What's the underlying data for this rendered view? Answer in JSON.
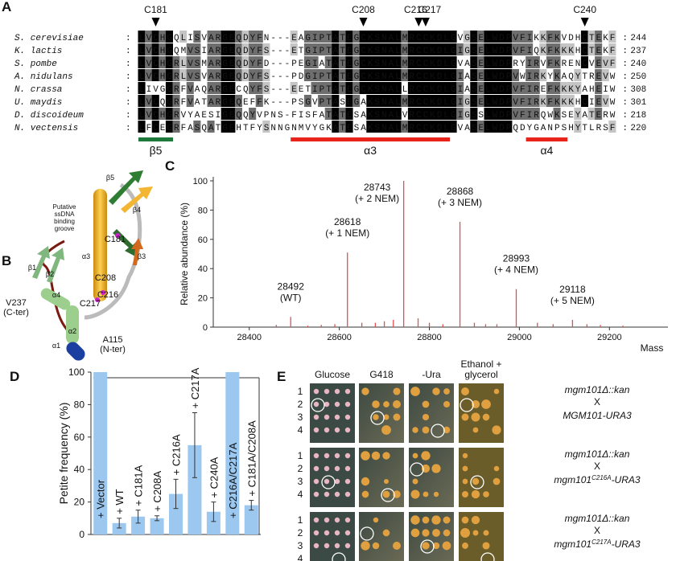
{
  "panel_letters": [
    "A",
    "B",
    "C",
    "D",
    "E"
  ],
  "panel_a": {
    "separator": ":",
    "markers": [
      "C181",
      "C208",
      "C216",
      "C217",
      "C240"
    ],
    "rows": [
      {
        "species": "S. cerevisiae",
        "sequence": "LVCHGQLISVARGEQDYFN---EAGIPTATEGCKSNALMRCCKDLGVGSELWDPVFIKKFKVDHCTEKF",
        "end": 244
      },
      {
        "species": "K. lactis",
        "sequence": "LVCHGQMVSIARGEQDYFS---ETGIPTATEGCKSNALMRCCKDLGIGSELWDPVFIQKFKKKHCTEKF",
        "end": 237
      },
      {
        "species": "S. pombe",
        "sequence": "LVCHGRLVSMARGEQDYFD---PEGIATATEGCKSNALMRCCKDLGVASELWDPRYIRVFKRENCVEVF",
        "end": 240
      },
      {
        "species": "A. nidulans",
        "sequence": "LVCHGRLVSVARGEQDYFS---PDGIPTATEGCKSNALMRCCKDLGIASELWDPVWIRKYKAQYTREVW",
        "end": 250
      },
      {
        "species": "N. crassa",
        "sequence": "LIVGGRFVAQARGECQYFS---EETIPTATEGCKSNALLRCCKDLGIASELWDPVFIREFKKKYAHEIW",
        "end": 308
      },
      {
        "species": "U. maydis",
        "sequence": "LVCQGRFVATARGEQEFFK---PSGVPTASEGAKSNALMRCCKDLGIGSELWDPVFIRKFKKKHCIEVW",
        "end": 301
      },
      {
        "species": "D. discoideum",
        "sequence": "LVCHGRVYAESIGEQQYVPNS-FISFATATESAKSNALVRCCKDLGIGSSLWDPVFIRQWKSEYATERW",
        "end": 218
      },
      {
        "species": "N. vectensis",
        "sequence": "LFCEGRFASQATGEHTFYSNNGNMVYGKATESAKSNALMRCCKDLGVASELWDPQDYGANPSHYTLRSF",
        "end": 220
      }
    ],
    "structure": [
      "β5",
      "α3",
      "α4"
    ]
  },
  "panel_b": {
    "labels": [
      [
        "Putative",
        "ssDNA",
        "binding",
        "groove"
      ],
      [
        "β5"
      ],
      [
        "β4"
      ],
      [
        "β3"
      ],
      [
        "C181"
      ],
      [
        "α3"
      ],
      [
        "C208"
      ],
      [
        "β1"
      ],
      [
        "β2"
      ],
      [
        "α4"
      ],
      [
        "C217"
      ],
      [
        "C216"
      ],
      [
        "α2"
      ],
      [
        "V237",
        "(C-ter)"
      ],
      [
        "α1"
      ],
      [
        "A115",
        "(N-ter)"
      ]
    ]
  },
  "chart_data": [
    {
      "type": "spectrum",
      "x_label": "Mass",
      "y_label": "Relative abundance (%)",
      "color": "#e05050",
      "x": [
        28460,
        28492,
        28530,
        28560,
        28590,
        28618,
        28650,
        28680,
        28700,
        28720,
        28743,
        28775,
        28800,
        28830,
        28868,
        28900,
        28925,
        28950,
        28993,
        29040,
        29075,
        29118,
        29150,
        29180,
        29230
      ],
      "values": [
        1.5,
        7,
        1,
        1.5,
        2,
        51,
        3,
        3,
        4,
        5,
        100,
        6,
        3,
        2,
        72,
        3,
        2,
        2,
        26,
        3,
        2,
        5,
        2,
        1.5,
        1
      ],
      "peak_labels": [
        null,
        [
          "28492",
          "(WT)"
        ],
        null,
        null,
        null,
        [
          "28618",
          "(+ 1 NEM)"
        ],
        null,
        null,
        null,
        null,
        [
          "28743",
          "(+ 2 NEM)"
        ],
        null,
        null,
        null,
        [
          "28868",
          "(+ 3 NEM)"
        ],
        null,
        null,
        null,
        [
          "28993",
          "(+ 4 NEM)"
        ],
        null,
        null,
        [
          "29118",
          "(+ 5 NEM)"
        ],
        null,
        null,
        null
      ],
      "xlim": [
        28320,
        29330
      ],
      "xticks": [
        28400,
        28600,
        28800,
        29000,
        29200
      ],
      "ylim": [
        0,
        100
      ],
      "yticks": [
        0,
        20,
        40,
        60,
        80,
        100
      ]
    },
    {
      "type": "bar",
      "y_label": "Petite frequency (%)",
      "color": "#9cc8f0",
      "error_color": "#333",
      "categories": [
        "+ Vector",
        "+ WT",
        "+ C181A",
        "+ C208A",
        "+ C216A",
        "+ C217A",
        "+ C240A",
        "+ C216A/C217A",
        "+ C181A/C208A"
      ],
      "values": [
        100,
        7,
        11,
        10,
        25,
        55,
        14,
        100,
        18
      ],
      "errors": [
        null,
        3,
        4,
        1.5,
        9,
        20,
        6,
        null,
        3
      ],
      "ylim": [
        0,
        100
      ],
      "yticks": [
        0,
        20,
        40,
        60,
        80,
        100
      ]
    }
  ],
  "panel_e": {
    "columns": [
      [
        "Glucose"
      ],
      [
        "G418"
      ],
      [
        "-Ura"
      ],
      [
        "Ethanol +",
        "glycerol"
      ]
    ],
    "row_labels": [
      "1",
      "2",
      "3",
      "4"
    ],
    "crosses": [
      {
        "parent": "mgm101Δ::kan",
        "cross": "X",
        "partner": [
          "MGM101-URA3"
        ]
      },
      {
        "parent": "mgm101Δ::kan",
        "cross": "X",
        "partner": [
          "mgm101",
          "C216A",
          "-URA3"
        ]
      },
      {
        "parent": "mgm101Δ::kan",
        "cross": "X",
        "partner": [
          "mgm101",
          "C217A",
          "-URA3"
        ]
      }
    ]
  }
}
